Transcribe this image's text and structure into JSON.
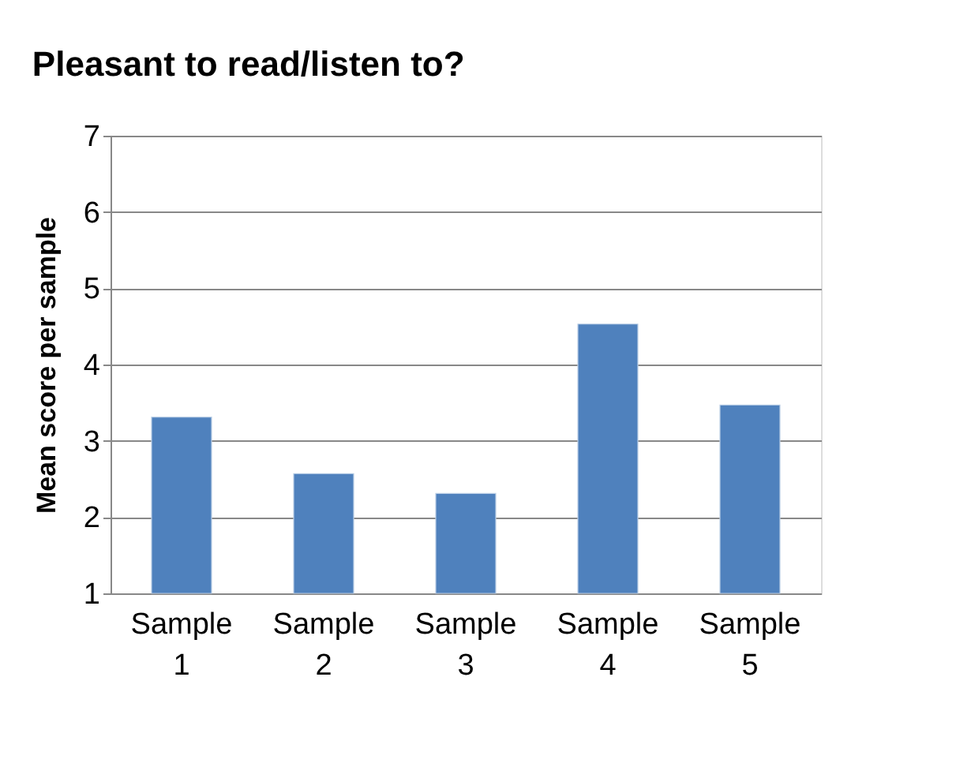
{
  "chart_data": {
    "type": "bar",
    "title": "Pleasant to read/listen to?",
    "ylabel": "Mean score per sample",
    "categories": [
      "Sample 1",
      "Sample 2",
      "Sample 3",
      "Sample 4",
      "Sample 5"
    ],
    "values": [
      3.31,
      2.57,
      2.31,
      4.53,
      3.47
    ],
    "color": "#4f81bd",
    "ylim": [
      1,
      7
    ],
    "yticks": [
      1,
      2,
      3,
      4,
      5,
      6,
      7
    ],
    "grid": "y"
  }
}
